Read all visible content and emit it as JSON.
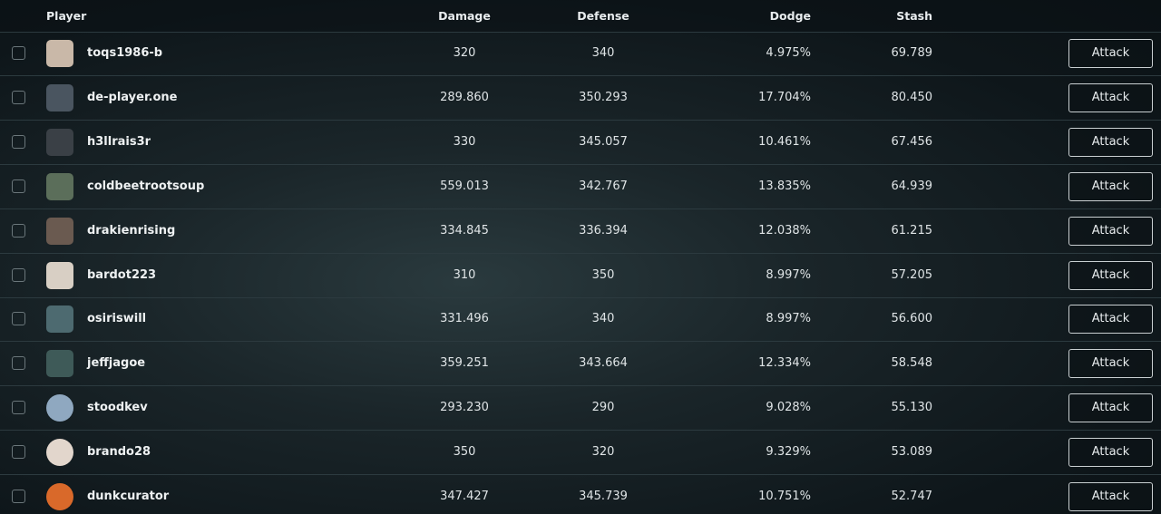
{
  "table": {
    "columns": [
      "Player",
      "Damage",
      "Defense",
      "Dodge",
      "Stash"
    ],
    "rows": [
      {
        "player": "toqs1986-b",
        "damage": "320",
        "defense": "340",
        "dodge": "4.975%",
        "stash": "69.789",
        "action": "Attack"
      },
      {
        "player": "de-player.one",
        "damage": "289.860",
        "defense": "350.293",
        "dodge": "17.704%",
        "stash": "80.450",
        "action": "Attack"
      },
      {
        "player": "h3llrais3r",
        "damage": "330",
        "defense": "345.057",
        "dodge": "10.461%",
        "stash": "67.456",
        "action": "Attack"
      },
      {
        "player": "coldbeetrootsoup",
        "damage": "559.013",
        "defense": "342.767",
        "dodge": "13.835%",
        "stash": "64.939",
        "action": "Attack"
      },
      {
        "player": "drakienrising",
        "damage": "334.845",
        "defense": "336.394",
        "dodge": "12.038%",
        "stash": "61.215",
        "action": "Attack"
      },
      {
        "player": "bardot223",
        "damage": "310",
        "defense": "350",
        "dodge": "8.997%",
        "stash": "57.205",
        "action": "Attack"
      },
      {
        "player": "osiriswill",
        "damage": "331.496",
        "defense": "340",
        "dodge": "8.997%",
        "stash": "56.600",
        "action": "Attack"
      },
      {
        "player": "jeffjagoe",
        "damage": "359.251",
        "defense": "343.664",
        "dodge": "12.334%",
        "stash": "58.548",
        "action": "Attack"
      },
      {
        "player": "stoodkev",
        "damage": "293.230",
        "defense": "290",
        "dodge": "9.028%",
        "stash": "55.130",
        "action": "Attack"
      },
      {
        "player": "brando28",
        "damage": "350",
        "defense": "320",
        "dodge": "9.329%",
        "stash": "53.089",
        "action": "Attack"
      },
      {
        "player": "dunkcurator",
        "damage": "347.427",
        "defense": "345.739",
        "dodge": "10.751%",
        "stash": "52.747",
        "action": "Attack"
      }
    ]
  }
}
